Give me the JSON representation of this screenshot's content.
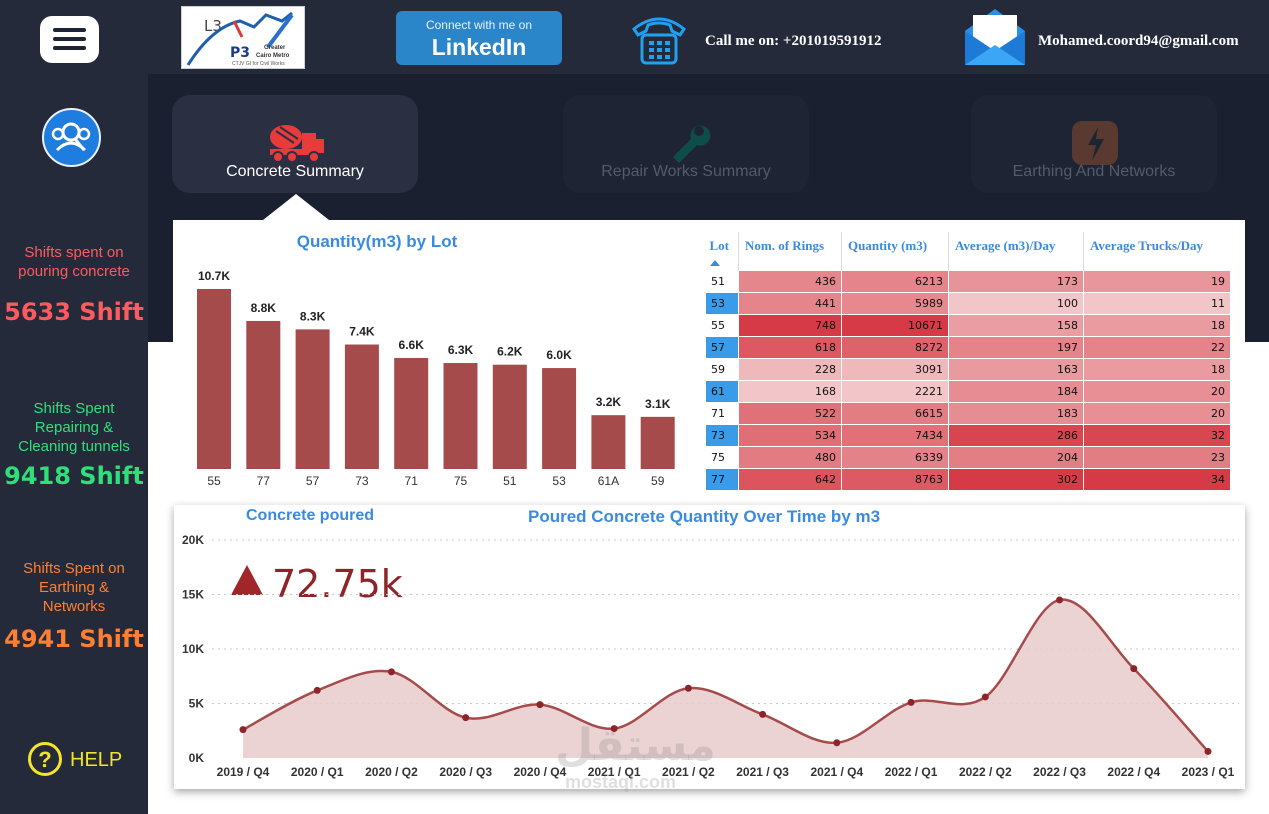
{
  "header": {
    "linkedin_line1": "Connect with me on",
    "linkedin_line2": "LinkedIn",
    "phone_text": "Call me on: +201019591912",
    "email_text": "Mohamed.coord94@gmail.com",
    "logo": {
      "l3": "L3",
      "p3": "P3",
      "line1": "Greater",
      "line2": "Cairo Metro",
      "line3": "CTJV  GI for Civil Works"
    }
  },
  "nav": {
    "tabs": [
      {
        "label": "Concrete Summary",
        "active": true,
        "icon": "concrete-mixer-truck-icon"
      },
      {
        "label": "Repair Works Summary",
        "active": false,
        "icon": "wrench-icon"
      },
      {
        "label": "Earthing And Networks",
        "active": false,
        "icon": "lightning-icon"
      }
    ]
  },
  "sidebar": {
    "stats": [
      {
        "label": "Shifts spent on pouring concrete",
        "value": "5633 Shift",
        "color": "#ff5a5f"
      },
      {
        "label": "Shifts Spent Repairing & Cleaning tunnels",
        "value": "9418 Shift",
        "color": "#2ee07a"
      },
      {
        "label": "Shifts Spent on Earthing & Networks",
        "value": "4941 Shift",
        "color": "#ff7f32"
      }
    ],
    "help_label": "HELP"
  },
  "bar_chart": {
    "title": "Quantity(m3) by Lot",
    "bar_color": "#a64b4c"
  },
  "lot_table": {
    "columns": [
      "Lot",
      "Nom. of Rings",
      "Quantity (m3)",
      "Average (m3)/Day",
      "Average Trucks/Day"
    ],
    "sort_icon": "sort-ascending-icon",
    "rows": [
      [
        "51",
        "436",
        "6213",
        "173",
        "19"
      ],
      [
        "53",
        "441",
        "5989",
        "100",
        "11"
      ],
      [
        "55",
        "748",
        "10671",
        "158",
        "18"
      ],
      [
        "57",
        "618",
        "8272",
        "197",
        "22"
      ],
      [
        "59",
        "228",
        "3091",
        "163",
        "18"
      ],
      [
        "61",
        "168",
        "2221",
        "184",
        "20"
      ],
      [
        "71",
        "522",
        "6615",
        "183",
        "20"
      ],
      [
        "73",
        "534",
        "7434",
        "286",
        "32"
      ],
      [
        "75",
        "480",
        "6339",
        "204",
        "23"
      ],
      [
        "77",
        "642",
        "8763",
        "302",
        "34"
      ]
    ]
  },
  "line_chart": {
    "card_label": "Concrete poured",
    "title": "Poured Concrete Quantity Over Time by m3",
    "kpi": "72.75k",
    "kpi_icon": "up-triangle-icon",
    "line_color": "#a64b4c",
    "fill_color": "#e9cbcb",
    "watermark": "مستقل",
    "watermark_sub": "mostaql.com"
  },
  "chart_data": [
    {
      "type": "bar",
      "title": "Quantity(m3) by Lot",
      "categories": [
        "55",
        "77",
        "57",
        "73",
        "71",
        "75",
        "51",
        "53",
        "61A",
        "59"
      ],
      "values": [
        10.7,
        8.8,
        8.3,
        7.4,
        6.6,
        6.3,
        6.2,
        6.0,
        3.2,
        3.1
      ],
      "labels": [
        "10.7K",
        "8.8K",
        "8.3K",
        "7.4K",
        "6.6K",
        "6.3K",
        "6.2K",
        "6.0K",
        "3.2K",
        "3.1K"
      ],
      "ylim": [
        0,
        11.5
      ]
    },
    {
      "type": "area",
      "title": "Poured Concrete Quantity Over Time by m3",
      "categories": [
        "2019 / Q4",
        "2020 / Q1",
        "2020 / Q2",
        "2020 / Q3",
        "2020 / Q4",
        "2021 / Q1",
        "2021 / Q2",
        "2021 / Q3",
        "2021 / Q4",
        "2022 / Q1",
        "2022 / Q2",
        "2022 / Q3",
        "2022 / Q4",
        "2023 / Q1"
      ],
      "values": [
        2600,
        6200,
        7900,
        3700,
        4900,
        2700,
        6400,
        4000,
        1400,
        5100,
        5600,
        14500,
        8200,
        600
      ],
      "yticks": [
        "0K",
        "5K",
        "10K",
        "15K",
        "20K"
      ],
      "ylim": [
        0,
        20000
      ],
      "grid": true
    }
  ]
}
